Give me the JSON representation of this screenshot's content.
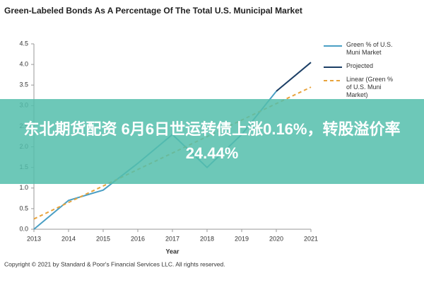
{
  "chart_data": {
    "type": "line",
    "title": "Green-Labeled Bonds As A Percentage Of The Total U.S. Municipal Market",
    "x_label": "Year",
    "x": [
      2013,
      2014,
      2015,
      2016,
      2017,
      2018,
      2019,
      2020,
      2021
    ],
    "series": [
      {
        "name": "Green % of U.S. Muni Market",
        "color": "#4a9fc4",
        "dashed": false,
        "values": [
          0.0,
          0.7,
          0.95,
          1.6,
          2.3,
          1.5,
          2.3,
          3.35,
          null
        ]
      },
      {
        "name": "Projected",
        "color": "#1c3f66",
        "dashed": false,
        "values": [
          null,
          null,
          null,
          null,
          null,
          null,
          null,
          3.35,
          4.05
        ]
      },
      {
        "name": "Linear (Green % of U.S. Muni Market)",
        "color": "#e8a33c",
        "dashed": true,
        "values": [
          0.25,
          0.65,
          1.05,
          1.45,
          1.85,
          2.25,
          2.65,
          3.05,
          3.45
        ]
      }
    ],
    "xlim": [
      2013,
      2021
    ],
    "xticks": [
      2013,
      2014,
      2015,
      2016,
      2017,
      2018,
      2019,
      2020,
      2021
    ],
    "ylim": [
      0,
      4.5
    ],
    "yticks": [
      {
        "value": 0,
        "label": "0.0"
      },
      0.5,
      {
        "value": 1,
        "label": "1.0"
      },
      1.5,
      {
        "value": 2,
        "label": "2.0"
      },
      2.5,
      {
        "value": 3,
        "label": "3.0"
      },
      3.5,
      {
        "value": 4,
        "label": "4.0"
      },
      4.5
    ],
    "grid": false,
    "legend": "right"
  },
  "copyright": "Copyright © 2021 by Standard & Poor's Financial Services LLC. All rights reserved.",
  "banner": "东北期货配资 6月6日世运转债上涨0.16%，转股溢价率24.44%"
}
